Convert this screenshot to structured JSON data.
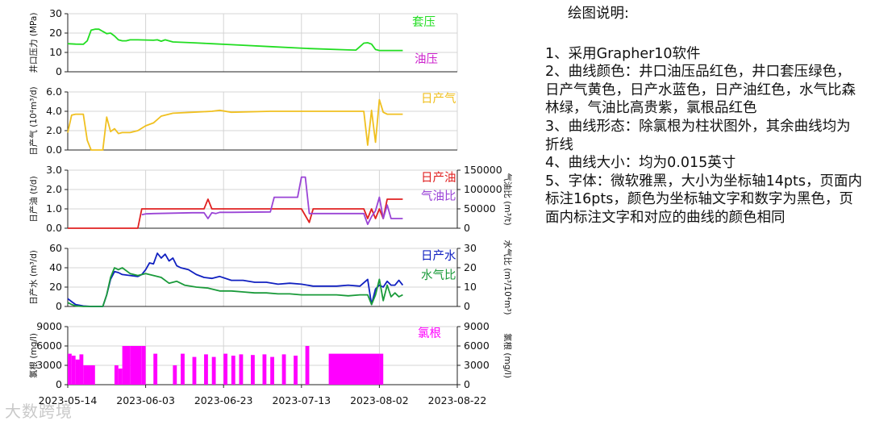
{
  "x_axis": {
    "ticks": [
      "2023-05-14",
      "2023-06-03",
      "2023-06-23",
      "2023-07-13",
      "2023-08-02",
      "2023-08-22"
    ]
  },
  "legend": {
    "casing": {
      "label": "套压",
      "color": "#22dd22"
    },
    "tubing": {
      "label": "油压",
      "color": "#cc22cc"
    },
    "gas": {
      "label": "日产气",
      "color": "#f0c020"
    },
    "oil": {
      "label": "日产油",
      "color": "#e02020"
    },
    "gor": {
      "label": "气油比",
      "color": "#9a44d6"
    },
    "water": {
      "label": "日产水",
      "color": "#1020c0"
    },
    "wgr": {
      "label": "水气比",
      "color": "#1a9a3a"
    },
    "chloride": {
      "label": "氯根",
      "color": "#ff00ff"
    }
  },
  "chart_data": [
    {
      "type": "line",
      "ylabel": "井口压力 (MPa)",
      "ylim": [
        0,
        30
      ],
      "yticks": [
        "0",
        "10",
        "20",
        "30"
      ],
      "grid": true,
      "series": [
        {
          "name": "套压",
          "color": "#22dd22",
          "x": [
            "2023-05-14",
            "2023-05-16",
            "2023-05-18",
            "2023-05-19",
            "2023-05-20",
            "2023-05-21",
            "2023-05-22",
            "2023-05-24",
            "2023-05-25",
            "2023-05-26",
            "2023-05-27",
            "2023-05-28",
            "2023-05-29",
            "2023-05-30",
            "2023-06-01",
            "2023-06-05",
            "2023-06-06",
            "2023-06-07",
            "2023-06-08",
            "2023-06-10",
            "2023-06-15",
            "2023-06-20",
            "2023-06-25",
            "2023-07-05",
            "2023-07-15",
            "2023-07-25",
            "2023-07-27",
            "2023-07-28",
            "2023-07-29",
            "2023-07-30",
            "2023-07-31",
            "2023-08-01",
            "2023-08-02",
            "2023-08-08"
          ],
          "values": [
            14.5,
            14.3,
            14.2,
            16,
            21.5,
            22,
            22,
            19.7,
            20,
            18.5,
            16.5,
            16,
            16,
            16.5,
            16.5,
            16.3,
            16.5,
            15.8,
            16.5,
            15.4,
            15,
            14.5,
            14,
            13,
            12,
            11.3,
            11.2,
            13,
            14.8,
            15,
            14.3,
            11.5,
            11,
            11
          ]
        },
        {
          "name": "油压",
          "color": "#cc22cc",
          "x": [],
          "values": []
        }
      ]
    },
    {
      "type": "line",
      "ylabel": "日产气 (10⁴m³/d)",
      "ylim": [
        0,
        6
      ],
      "yticks": [
        "0.0",
        "2.0",
        "4.0",
        "6.0"
      ],
      "grid": true,
      "series": [
        {
          "name": "日产气",
          "color": "#f0c020",
          "x": [
            "2023-05-14",
            "2023-05-15",
            "2023-05-16",
            "2023-05-18",
            "2023-05-19",
            "2023-05-20",
            "2023-05-21",
            "2023-05-23",
            "2023-05-24",
            "2023-05-25",
            "2023-05-26",
            "2023-05-27",
            "2023-05-28",
            "2023-05-30",
            "2023-06-01",
            "2023-06-03",
            "2023-06-05",
            "2023-06-07",
            "2023-06-10",
            "2023-06-15",
            "2023-06-20",
            "2023-06-22",
            "2023-06-25",
            "2023-07-05",
            "2023-07-15",
            "2023-07-25",
            "2023-07-29",
            "2023-07-30",
            "2023-07-31",
            "2023-08-01",
            "2023-08-02",
            "2023-08-03",
            "2023-08-04",
            "2023-08-08"
          ],
          "values": [
            1.8,
            3.6,
            3.7,
            3.7,
            1.0,
            0.0,
            0.0,
            0.0,
            3.4,
            1.9,
            2.2,
            1.7,
            1.8,
            1.8,
            2.0,
            2.5,
            2.8,
            3.5,
            3.8,
            3.9,
            4.0,
            4.1,
            3.9,
            4.0,
            4.0,
            4.0,
            4.0,
            0.5,
            4.1,
            0.8,
            5.2,
            3.9,
            3.7,
            3.7
          ]
        }
      ]
    },
    {
      "type": "line",
      "ylabel": "日产油 (t/d)",
      "ylim": [
        0,
        3
      ],
      "yticks": [
        "0.0",
        "1.0",
        "2.0",
        "3.0"
      ],
      "y2label": "气油比 (m³/t)",
      "y2lim": [
        0,
        150000
      ],
      "y2ticks": [
        "0",
        "50000",
        "100000",
        "150000"
      ],
      "grid": true,
      "series": [
        {
          "name": "日产油",
          "color": "#e02020",
          "x": [
            "2023-05-14",
            "2023-06-01",
            "2023-06-02",
            "2023-06-18",
            "2023-06-19",
            "2023-06-20",
            "2023-06-28",
            "2023-07-07",
            "2023-07-13",
            "2023-07-15",
            "2023-07-16",
            "2023-07-17",
            "2023-07-29",
            "2023-07-30",
            "2023-07-31",
            "2023-08-01",
            "2023-08-02",
            "2023-08-03",
            "2023-08-04",
            "2023-08-08"
          ],
          "values": [
            0,
            0,
            1.0,
            1.0,
            1.5,
            1.0,
            1.0,
            1.0,
            1.0,
            0.3,
            1.0,
            1.0,
            1.0,
            0.5,
            1.0,
            0.5,
            1.0,
            0.5,
            1.5,
            1.5
          ]
        },
        {
          "name": "气油比",
          "color": "#9a44d6",
          "axis": "right",
          "x": [
            "2023-06-02",
            "2023-06-03",
            "2023-06-05",
            "2023-06-10",
            "2023-06-15",
            "2023-06-18",
            "2023-06-19",
            "2023-06-20",
            "2023-06-21",
            "2023-06-22",
            "2023-06-25",
            "2023-07-05",
            "2023-07-06",
            "2023-07-07",
            "2023-07-12",
            "2023-07-13",
            "2023-07-14",
            "2023-07-15",
            "2023-07-16",
            "2023-07-20",
            "2023-07-29",
            "2023-07-30",
            "2023-07-31",
            "2023-08-01",
            "2023-08-02",
            "2023-08-03",
            "2023-08-04",
            "2023-08-05",
            "2023-08-08"
          ],
          "values": [
            35000,
            37000,
            38000,
            39000,
            40000,
            40000,
            25000,
            40000,
            38000,
            41000,
            41000,
            42000,
            80000,
            80000,
            80000,
            132000,
            132000,
            38000,
            38000,
            38000,
            38000,
            10000,
            30000,
            45000,
            80000,
            25000,
            60000,
            25000,
            25000
          ]
        }
      ]
    },
    {
      "type": "line",
      "ylabel": "日产水 (m³/d)",
      "ylim": [
        0,
        60
      ],
      "yticks": [
        "0",
        "20",
        "40",
        "60"
      ],
      "y2label": "水气比 (m³/10⁴m³)",
      "y2lim": [
        0,
        30
      ],
      "y2ticks": [
        "0",
        "10",
        "20",
        "30"
      ],
      "grid": true,
      "series": [
        {
          "name": "日产水",
          "color": "#1020c0",
          "x": [
            "2023-05-14",
            "2023-05-15",
            "2023-05-16",
            "2023-05-18",
            "2023-05-20",
            "2023-05-22",
            "2023-05-23",
            "2023-05-24",
            "2023-05-25",
            "2023-05-26",
            "2023-05-27",
            "2023-05-28",
            "2023-05-30",
            "2023-06-01",
            "2023-06-02",
            "2023-06-03",
            "2023-06-04",
            "2023-06-05",
            "2023-06-06",
            "2023-06-07",
            "2023-06-08",
            "2023-06-09",
            "2023-06-10",
            "2023-06-11",
            "2023-06-12",
            "2023-06-14",
            "2023-06-16",
            "2023-06-18",
            "2023-06-20",
            "2023-06-22",
            "2023-06-25",
            "2023-06-28",
            "2023-07-01",
            "2023-07-04",
            "2023-07-07",
            "2023-07-10",
            "2023-07-13",
            "2023-07-16",
            "2023-07-19",
            "2023-07-22",
            "2023-07-25",
            "2023-07-28",
            "2023-07-30",
            "2023-07-31",
            "2023-08-01",
            "2023-08-02",
            "2023-08-03",
            "2023-08-04",
            "2023-08-05",
            "2023-08-06",
            "2023-08-07",
            "2023-08-08"
          ],
          "values": [
            8,
            5,
            2,
            0.5,
            0,
            0,
            0,
            12,
            28,
            36,
            35,
            33,
            32,
            31,
            33,
            38,
            45,
            44,
            55,
            50,
            54,
            47,
            50,
            42,
            40,
            38,
            33,
            30,
            29,
            31,
            27,
            27,
            25,
            25,
            23,
            24,
            23,
            21,
            21,
            21,
            22,
            21,
            28,
            2,
            18,
            22,
            20,
            26,
            22,
            22,
            27,
            22
          ]
        },
        {
          "name": "水气比",
          "color": "#1a9a3a",
          "axis": "right",
          "x": [
            "2023-05-14",
            "2023-05-15",
            "2023-05-16",
            "2023-05-18",
            "2023-05-20",
            "2023-05-22",
            "2023-05-23",
            "2023-05-24",
            "2023-05-25",
            "2023-05-26",
            "2023-05-27",
            "2023-05-28",
            "2023-05-30",
            "2023-06-01",
            "2023-06-03",
            "2023-06-05",
            "2023-06-07",
            "2023-06-09",
            "2023-06-11",
            "2023-06-13",
            "2023-06-16",
            "2023-06-19",
            "2023-06-22",
            "2023-06-25",
            "2023-06-28",
            "2023-07-01",
            "2023-07-04",
            "2023-07-07",
            "2023-07-10",
            "2023-07-13",
            "2023-07-16",
            "2023-07-19",
            "2023-07-22",
            "2023-07-25",
            "2023-07-28",
            "2023-07-30",
            "2023-07-31",
            "2023-08-01",
            "2023-08-02",
            "2023-08-03",
            "2023-08-04",
            "2023-08-05",
            "2023-08-06",
            "2023-08-07",
            "2023-08-08"
          ],
          "values": [
            2,
            1,
            0.3,
            0,
            0,
            0,
            0,
            6,
            15,
            20,
            19,
            20,
            17,
            16,
            17,
            16,
            15,
            12,
            13,
            11,
            10,
            9.5,
            8,
            8,
            7.5,
            7,
            7,
            6.5,
            6.5,
            6,
            6,
            6,
            6,
            5.5,
            6,
            6,
            1,
            6,
            14,
            3,
            11,
            5,
            7,
            5,
            6
          ]
        }
      ]
    },
    {
      "type": "bar",
      "ylabel": "氯根 (mg/l)",
      "ylim": [
        0,
        9000
      ],
      "yticks": [
        "0",
        "3000",
        "6000",
        "9000"
      ],
      "y2label": "氯根 (mg/l)",
      "y2ticks": [
        "0",
        "3000",
        "6000",
        "9000"
      ],
      "grid": true,
      "series": [
        {
          "name": "氯根",
          "color": "#ff00ff",
          "x_start": [
            "2023-05-14",
            "2023-05-15",
            "2023-05-16",
            "2023-05-17",
            "2023-05-18",
            "2023-05-20",
            "2023-05-26",
            "2023-05-27",
            "2023-05-28",
            "2023-05-30",
            "2023-06-02",
            "2023-06-05",
            "2023-06-10",
            "2023-06-12",
            "2023-06-15",
            "2023-06-18",
            "2023-06-20",
            "2023-06-23",
            "2023-06-25",
            "2023-06-27",
            "2023-06-30",
            "2023-07-03",
            "2023-07-05",
            "2023-07-08",
            "2023-07-11",
            "2023-07-14",
            "2023-07-20",
            "2023-08-02"
          ],
          "x_end": [
            "2023-05-15",
            "2023-05-16",
            "2023-05-17",
            "2023-05-18",
            "2023-05-20",
            "2023-05-21",
            "2023-05-27",
            "2023-05-28",
            "2023-05-30",
            "2023-06-02",
            "2023-06-03",
            "2023-06-06",
            "2023-06-11",
            "2023-06-13",
            "2023-06-16",
            "2023-06-19",
            "2023-06-21",
            "2023-06-24",
            "2023-06-26",
            "2023-06-28",
            "2023-07-01",
            "2023-07-04",
            "2023-07-06",
            "2023-07-09",
            "2023-07-12",
            "2023-07-15",
            "2023-08-02",
            "2023-08-03"
          ],
          "values": [
            4800,
            4500,
            3900,
            4700,
            3000,
            3000,
            3000,
            2500,
            6000,
            6000,
            6000,
            4800,
            3000,
            4800,
            4300,
            4700,
            4300,
            4800,
            4500,
            4700,
            4600,
            4700,
            4300,
            4700,
            4500,
            6000,
            4800,
            4800
          ]
        }
      ]
    }
  ],
  "notes": {
    "title": "绘图说明:",
    "lines": [
      "1、采用Grapher10软件",
      "2、曲线颜色：井口油压品红色，井口套压绿色，日产气黄色，日产水蓝色，日产油红色，水气比森林绿，气油比高贵紫，氯根品红色",
      "3、曲线形态：除氯根为柱状图外，其余曲线均为折线",
      "4、曲线大小：均为0.015英寸",
      "5、字体：微软雅黑，大小为坐标轴14pts，页面内标注16pts，颜色为坐标轴文字和数字为黑色，页面内标注文字和对应的曲线的颜色相同"
    ]
  },
  "watermark": "大数跨境"
}
